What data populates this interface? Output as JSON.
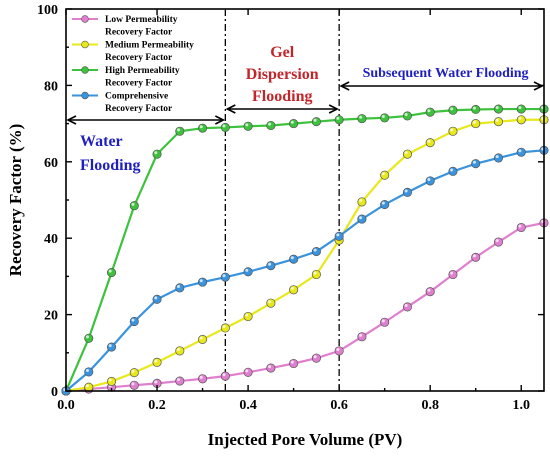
{
  "chart_data": {
    "type": "line",
    "xlabel": "Injected Pore Volume (PV)",
    "ylabel": "Recovery Factor (%)",
    "xlim": [
      0,
      1.05
    ],
    "ylim": [
      0,
      100
    ],
    "xticks": [
      0.0,
      0.2,
      0.4,
      0.6,
      0.8,
      1.0
    ],
    "xtick_labels": [
      "0.0",
      "0.2",
      "0.4",
      "0.6",
      "0.8",
      "1.0"
    ],
    "yticks": [
      0,
      20,
      40,
      60,
      80,
      100
    ],
    "ytick_labels": [
      "0",
      "20",
      "40",
      "60",
      "80",
      "100"
    ],
    "grid": false,
    "legend_position": "top-left",
    "dividers": [
      0.35,
      0.6
    ],
    "regions": [
      {
        "lines": [
          "Water",
          "Flooding"
        ],
        "color": "#1f1fbf",
        "x_start": 0,
        "x_end": 0.35
      },
      {
        "lines": [
          "Gel",
          "Dispersion",
          "Flooding"
        ],
        "color": "#c0262b",
        "x_start": 0.35,
        "x_end": 0.6
      },
      {
        "lines": [
          "Subsequent Water Flooding"
        ],
        "color": "#1f1fbf",
        "x_start": 0.6,
        "x_end": 1.05
      }
    ],
    "x": [
      0.0,
      0.05,
      0.1,
      0.15,
      0.2,
      0.25,
      0.3,
      0.35,
      0.4,
      0.45,
      0.5,
      0.55,
      0.6,
      0.65,
      0.7,
      0.75,
      0.8,
      0.85,
      0.9,
      0.95,
      1.0,
      1.05
    ],
    "series": [
      {
        "name": "Low Permeability Recovery Factor",
        "legend_lines": [
          "Low Permeability",
          "Recovery Factor"
        ],
        "color": "#e07fcf",
        "values": [
          0,
          0.5,
          1.0,
          1.5,
          2.0,
          2.6,
          3.2,
          3.9,
          4.9,
          6.0,
          7.2,
          8.6,
          10.5,
          14.2,
          18.0,
          22.0,
          26.0,
          30.5,
          35.0,
          39.0,
          42.8,
          44.0
        ]
      },
      {
        "name": "Medium Permeability Recovery Factor",
        "legend_lines": [
          "Medium Permeability",
          "Recovery Factor"
        ],
        "color": "#e8e81a",
        "values": [
          0,
          1.0,
          2.5,
          4.8,
          7.5,
          10.5,
          13.5,
          16.5,
          19.5,
          23.0,
          26.5,
          30.5,
          39.5,
          49.5,
          56.5,
          62.0,
          65.0,
          68.0,
          70.0,
          70.5,
          71.0,
          71.0
        ]
      },
      {
        "name": "High Permeability Recovery Factor",
        "legend_lines": [
          "High Permeability",
          "Recovery Factor"
        ],
        "color": "#3cc23c",
        "values": [
          0,
          13.8,
          31.0,
          48.5,
          62.0,
          68.0,
          68.8,
          69.0,
          69.3,
          69.5,
          70.0,
          70.5,
          71.0,
          71.3,
          71.5,
          72.0,
          73.0,
          73.5,
          73.7,
          73.8,
          73.8,
          73.8
        ]
      },
      {
        "name": "Comprehensive Recovery Factor",
        "legend_lines": [
          "Comprehensive",
          "Recovery Factor"
        ],
        "color": "#3a93dd",
        "values": [
          0,
          5.0,
          11.5,
          18.2,
          24.0,
          27.0,
          28.5,
          29.8,
          31.2,
          32.8,
          34.5,
          36.5,
          40.5,
          45.0,
          48.8,
          52.0,
          55.0,
          57.5,
          59.5,
          61.0,
          62.5,
          63.0
        ]
      }
    ]
  }
}
